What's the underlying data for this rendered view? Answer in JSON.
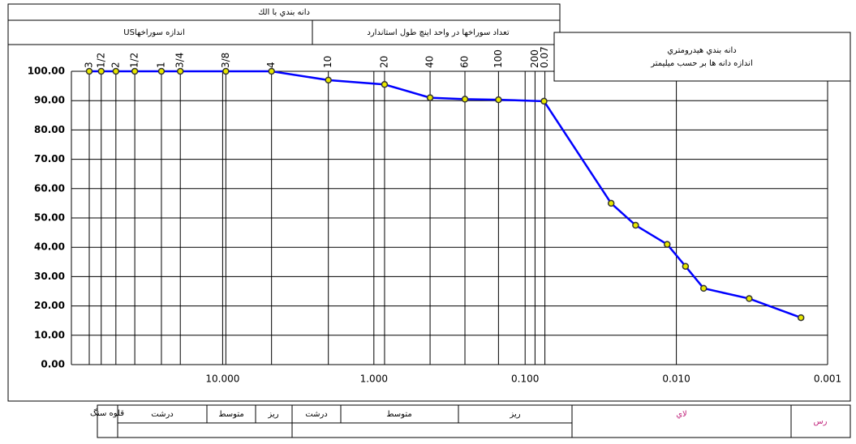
{
  "header": {
    "title": "دانه بندي با الك",
    "us_sizes": "USاندازه سوراخها",
    "count": "تعداد سوراخها در واحد اينچ طول استاندارد",
    "hydrometer": [
      "دانه بندي هيدرومتري",
      "اندازه دانه ها بر حسب ميليمتر"
    ]
  },
  "chart_data": {
    "type": "line",
    "log_x": true,
    "grid": true,
    "x": [
      76.2,
      63.5,
      50.8,
      38.1,
      25.4,
      19.05,
      9.525,
      4.75,
      2.0,
      0.85,
      0.425,
      0.25,
      0.15,
      0.075,
      0.027,
      0.0186,
      0.0115,
      0.0087,
      0.0066,
      0.0033,
      0.0015
    ],
    "series": [
      {
        "color": "#0000ff",
        "marker_color": "#e8e800",
        "values": [
          100,
          100,
          100,
          100,
          100,
          100,
          100,
          100,
          97,
          95.5,
          91,
          90.5,
          90.3,
          89.8,
          55,
          47.5,
          41,
          33.5,
          26,
          22.5,
          16
        ]
      }
    ],
    "xlim": [
      100,
      0.001
    ],
    "xticks": [
      {
        "value": 10,
        "label": "10.000"
      },
      {
        "value": 1,
        "label": "1.000"
      },
      {
        "value": 0.1,
        "label": "0.100"
      },
      {
        "value": 0.01,
        "label": "0.010"
      },
      {
        "value": 0.001,
        "label": "0.001"
      }
    ],
    "ylim": [
      0,
      100
    ],
    "yticks": [
      {
        "value": 0,
        "label": "0.00"
      },
      {
        "value": 10,
        "label": "10.00"
      },
      {
        "value": 20,
        "label": "20.00"
      },
      {
        "value": 30,
        "label": "30.00"
      },
      {
        "value": 40,
        "label": "40.00"
      },
      {
        "value": 50,
        "label": "50.00"
      },
      {
        "value": 60,
        "label": "60.00"
      },
      {
        "value": 70,
        "label": "70.00"
      },
      {
        "value": 80,
        "label": "80.00"
      },
      {
        "value": 90,
        "label": "90.00"
      },
      {
        "value": 100,
        "label": "100.00"
      }
    ],
    "top_labels": [
      {
        "value": 76.2,
        "label": "3"
      },
      {
        "value": 63.5,
        "label": "1/2"
      },
      {
        "value": 50.8,
        "label": "2"
      },
      {
        "value": 38.1,
        "label": "1/2"
      },
      {
        "value": 25.4,
        "label": "1"
      },
      {
        "value": 19.05,
        "label": "3/4"
      },
      {
        "value": 9.525,
        "label": "3/8"
      },
      {
        "value": 4.75,
        "label": "4"
      },
      {
        "value": 2.0,
        "label": "10"
      },
      {
        "value": 0.85,
        "label": "20"
      },
      {
        "value": 0.425,
        "label": "40"
      },
      {
        "value": 0.25,
        "label": "60"
      },
      {
        "value": 0.15,
        "label": "100"
      },
      {
        "value": 0.086,
        "label": "200"
      },
      {
        "value": 0.074,
        "label": "0.07"
      }
    ]
  },
  "soil_classes": {
    "cobble": "قلوه سنگ",
    "gravel_coarse": "درشت",
    "gravel_medium": "متوسط",
    "gravel_fine": "ريز",
    "sand_coarse": "درشت",
    "sand_medium": "متوسط",
    "sand_fine": "ريز",
    "silt": "لاي",
    "clay": "رس"
  }
}
